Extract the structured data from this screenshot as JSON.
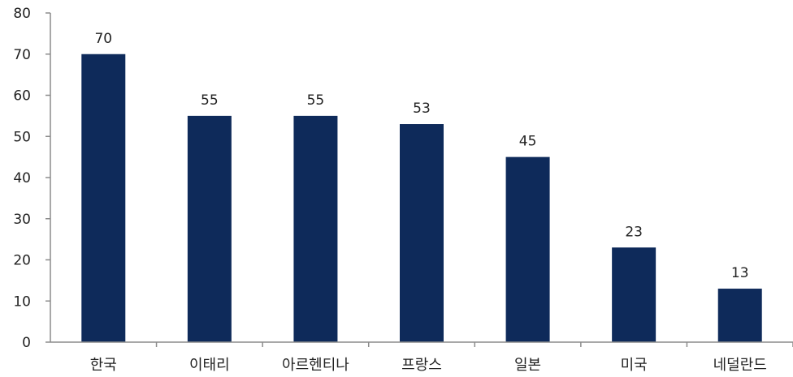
{
  "chart_data": {
    "type": "bar",
    "categories": [
      "한국",
      "이태리",
      "아르헨티나",
      "프랑스",
      "일본",
      "미국",
      "네덜란드"
    ],
    "values": [
      70,
      55,
      55,
      53,
      45,
      23,
      13
    ],
    "data_labels": [
      "70",
      "55",
      "55",
      "53",
      "45",
      "23",
      "13"
    ],
    "y_ticks": [
      "0",
      "10",
      "20",
      "30",
      "40",
      "50",
      "60",
      "70",
      "80"
    ],
    "ylim": [
      0,
      80
    ],
    "bar_color": "#0e2a5a",
    "grid": false,
    "legend": "none"
  }
}
